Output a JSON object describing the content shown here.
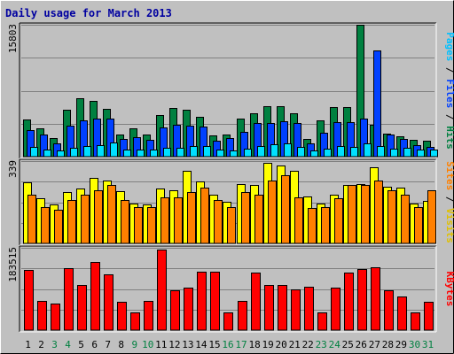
{
  "title": "Daily usage for March 2013",
  "colors": {
    "background": "#c0c0c0",
    "plot_bg": "#c0c0c0",
    "grid": "#808080",
    "title": "#0000a0",
    "hits": "#008040",
    "files": "#0040ff",
    "pages": "#00e0ff",
    "visits": "#ffff00",
    "sites": "#ff8000",
    "kbytes": "#ff0000",
    "weekday_label": "#000000",
    "weekend_label": "#008040"
  },
  "right_labels": {
    "top": [
      {
        "text": "Pages",
        "color": "#00c0ff"
      },
      {
        "text": " / ",
        "color": "#000000"
      },
      {
        "text": "Files",
        "color": "#0040ff"
      },
      {
        "text": " / ",
        "color": "#000000"
      },
      {
        "text": "Hits",
        "color": "#008040"
      }
    ],
    "middle": [
      {
        "text": "Sites",
        "color": "#ff8000"
      },
      {
        "text": " / ",
        "color": "#000000"
      },
      {
        "text": "Visits",
        "color": "#e0c000"
      }
    ],
    "bottom": [
      {
        "text": "KBytes",
        "color": "#ff0000"
      }
    ]
  },
  "chart_data": [
    {
      "type": "bar",
      "panel": "hits-files-pages",
      "ymax_label": "15803",
      "ylim": [
        0,
        15803
      ],
      "categories": [
        "1",
        "2",
        "3",
        "4",
        "5",
        "6",
        "7",
        "8",
        "9",
        "10",
        "11",
        "12",
        "13",
        "14",
        "15",
        "16",
        "17",
        "18",
        "19",
        "20",
        "21",
        "22",
        "23",
        "24",
        "25",
        "26",
        "27",
        "28",
        "29",
        "30",
        "31"
      ],
      "weekend": [
        false,
        false,
        true,
        true,
        false,
        false,
        false,
        false,
        true,
        true,
        false,
        false,
        false,
        false,
        false,
        true,
        true,
        false,
        false,
        false,
        false,
        false,
        true,
        true,
        false,
        false,
        false,
        false,
        false,
        true,
        true
      ],
      "series": [
        {
          "name": "Hits",
          "values": [
            4500,
            3400,
            2200,
            5600,
            7000,
            6700,
            5700,
            2700,
            3400,
            2700,
            5000,
            5800,
            5600,
            4800,
            2500,
            2600,
            4600,
            5200,
            6000,
            6000,
            5200,
            2100,
            4300,
            5900,
            5900,
            15800,
            3800,
            2800,
            2400,
            2000,
            1900
          ]
        },
        {
          "name": "Files",
          "values": [
            3200,
            2700,
            1600,
            3700,
            4300,
            4600,
            4600,
            2100,
            2300,
            2000,
            3500,
            3800,
            3700,
            3600,
            1900,
            2200,
            3000,
            4000,
            4000,
            4200,
            4000,
            1600,
            2900,
            4100,
            4100,
            4600,
            12700,
            2600,
            2100,
            1400,
            1200
          ]
        },
        {
          "name": "Pages",
          "values": [
            1200,
            900,
            700,
            1100,
            1300,
            1400,
            1700,
            800,
            900,
            800,
            1100,
            1100,
            1300,
            1300,
            800,
            700,
            1000,
            1300,
            1500,
            1600,
            1200,
            700,
            1000,
            1300,
            1200,
            1600,
            1300,
            1000,
            1100,
            800,
            800
          ]
        }
      ]
    },
    {
      "type": "bar",
      "panel": "visits-sites",
      "ymax_label": "339",
      "ylim": [
        0,
        339
      ],
      "series": [
        {
          "name": "Visits",
          "values": [
            250,
            185,
            160,
            210,
            225,
            270,
            260,
            215,
            165,
            160,
            225,
            220,
            300,
            255,
            200,
            170,
            245,
            240,
            330,
            320,
            300,
            195,
            165,
            200,
            240,
            245,
            315,
            235,
            230,
            165,
            175
          ]
        },
        {
          "name": "Sites",
          "values": [
            200,
            150,
            140,
            180,
            200,
            220,
            240,
            180,
            150,
            150,
            190,
            190,
            210,
            230,
            180,
            150,
            210,
            200,
            260,
            280,
            190,
            145,
            150,
            185,
            240,
            240,
            260,
            220,
            200,
            150,
            220
          ]
        }
      ]
    },
    {
      "type": "bar",
      "panel": "kbytes",
      "ymax_label": "183515",
      "ylim": [
        0,
        183515
      ],
      "series": [
        {
          "name": "KBytes",
          "values": [
            135000,
            65000,
            60000,
            138000,
            100000,
            151000,
            125000,
            63000,
            40000,
            65000,
            180000,
            88000,
            95000,
            130000,
            130000,
            40000,
            65000,
            128000,
            100000,
            100000,
            90000,
            97000,
            40000,
            95000,
            128000,
            137000,
            140000,
            88000,
            75000,
            40000,
            63000
          ]
        }
      ]
    }
  ]
}
